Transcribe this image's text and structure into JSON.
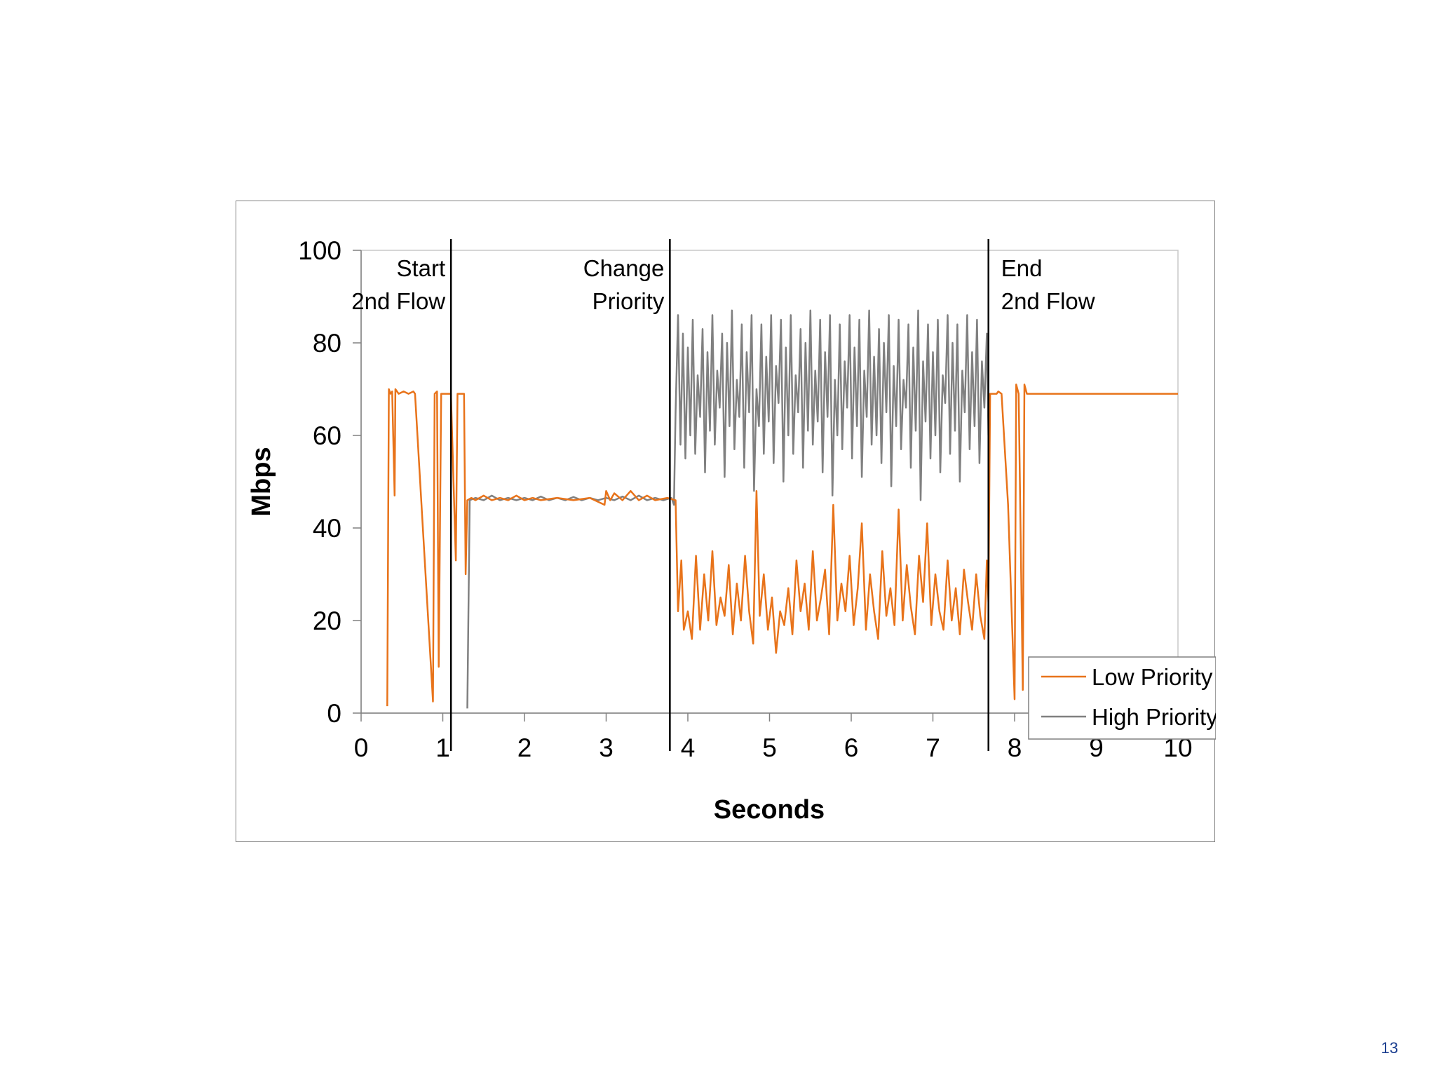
{
  "page": {
    "number": "13"
  },
  "colors": {
    "low_priority": "#E8731A",
    "high_priority": "#808080",
    "event_line": "#000000",
    "axis": "#808080"
  },
  "chart_data": {
    "type": "line",
    "xlabel": "Seconds",
    "ylabel": "Mbps",
    "xlim": [
      0,
      10
    ],
    "ylim": [
      0,
      100
    ],
    "x_ticks": [
      "0",
      "1",
      "2",
      "3",
      "4",
      "5",
      "6",
      "7",
      "8",
      "9",
      "10"
    ],
    "y_ticks": [
      "0",
      "20",
      "40",
      "60",
      "80",
      "100"
    ],
    "grid": false,
    "legend_position": "bottom-right",
    "events": [
      {
        "x": 1.1,
        "label_lines": [
          "Start",
          "2nd Flow"
        ],
        "align": "right"
      },
      {
        "x": 3.78,
        "label_lines": [
          "Change",
          "Priority"
        ],
        "align": "right"
      },
      {
        "x": 7.68,
        "label_lines": [
          "End",
          "2nd Flow"
        ],
        "align": "left"
      }
    ],
    "series": [
      {
        "name": "Low Priority",
        "color": "#E8731A",
        "points": [
          [
            0.32,
            1.5
          ],
          [
            0.34,
            70
          ],
          [
            0.36,
            69
          ],
          [
            0.38,
            69.5
          ],
          [
            0.41,
            47
          ],
          [
            0.42,
            70
          ],
          [
            0.46,
            69
          ],
          [
            0.52,
            69.5
          ],
          [
            0.58,
            69
          ],
          [
            0.64,
            69.5
          ],
          [
            0.66,
            69
          ],
          [
            0.88,
            2.5
          ],
          [
            0.9,
            69
          ],
          [
            0.93,
            69.5
          ],
          [
            0.95,
            10
          ],
          [
            0.98,
            69
          ],
          [
            1.04,
            69
          ],
          [
            1.1,
            69
          ],
          [
            1.16,
            33
          ],
          [
            1.18,
            69
          ],
          [
            1.26,
            69
          ],
          [
            1.28,
            30
          ],
          [
            1.3,
            46
          ],
          [
            1.35,
            46.5
          ],
          [
            1.4,
            46
          ],
          [
            1.5,
            47
          ],
          [
            1.6,
            46
          ],
          [
            1.7,
            46.5
          ],
          [
            1.8,
            46
          ],
          [
            1.9,
            47
          ],
          [
            2.0,
            46
          ],
          [
            2.1,
            46.5
          ],
          [
            2.2,
            46
          ],
          [
            2.4,
            46.5
          ],
          [
            2.6,
            46
          ],
          [
            2.8,
            46.5
          ],
          [
            2.98,
            45
          ],
          [
            3.0,
            48
          ],
          [
            3.05,
            46
          ],
          [
            3.1,
            47.5
          ],
          [
            3.2,
            46
          ],
          [
            3.3,
            48
          ],
          [
            3.4,
            46
          ],
          [
            3.5,
            47
          ],
          [
            3.6,
            46
          ],
          [
            3.75,
            46.5
          ],
          [
            3.85,
            46
          ],
          [
            3.88,
            22
          ],
          [
            3.92,
            33
          ],
          [
            3.95,
            18
          ],
          [
            4.0,
            22
          ],
          [
            4.05,
            16
          ],
          [
            4.1,
            34
          ],
          [
            4.15,
            18
          ],
          [
            4.2,
            30
          ],
          [
            4.25,
            20
          ],
          [
            4.3,
            35
          ],
          [
            4.35,
            19
          ],
          [
            4.4,
            25
          ],
          [
            4.45,
            21
          ],
          [
            4.5,
            32
          ],
          [
            4.55,
            17
          ],
          [
            4.6,
            28
          ],
          [
            4.65,
            20
          ],
          [
            4.7,
            34
          ],
          [
            4.75,
            22
          ],
          [
            4.8,
            15
          ],
          [
            4.84,
            48
          ],
          [
            4.88,
            21
          ],
          [
            4.93,
            30
          ],
          [
            4.98,
            18
          ],
          [
            5.03,
            25
          ],
          [
            5.08,
            13
          ],
          [
            5.13,
            22
          ],
          [
            5.18,
            19
          ],
          [
            5.23,
            27
          ],
          [
            5.28,
            17
          ],
          [
            5.33,
            33
          ],
          [
            5.38,
            22
          ],
          [
            5.43,
            28
          ],
          [
            5.48,
            18
          ],
          [
            5.53,
            35
          ],
          [
            5.58,
            20
          ],
          [
            5.63,
            25
          ],
          [
            5.68,
            31
          ],
          [
            5.73,
            17
          ],
          [
            5.78,
            45
          ],
          [
            5.83,
            20
          ],
          [
            5.88,
            28
          ],
          [
            5.93,
            22
          ],
          [
            5.98,
            34
          ],
          [
            6.03,
            19
          ],
          [
            6.08,
            27
          ],
          [
            6.13,
            41
          ],
          [
            6.18,
            18
          ],
          [
            6.23,
            30
          ],
          [
            6.28,
            22
          ],
          [
            6.33,
            16
          ],
          [
            6.38,
            35
          ],
          [
            6.43,
            21
          ],
          [
            6.48,
            27
          ],
          [
            6.53,
            19
          ],
          [
            6.58,
            44
          ],
          [
            6.63,
            20
          ],
          [
            6.68,
            32
          ],
          [
            6.73,
            23
          ],
          [
            6.78,
            17
          ],
          [
            6.83,
            34
          ],
          [
            6.88,
            24
          ],
          [
            6.93,
            41
          ],
          [
            6.98,
            19
          ],
          [
            7.03,
            30
          ],
          [
            7.08,
            22
          ],
          [
            7.13,
            18
          ],
          [
            7.18,
            33
          ],
          [
            7.23,
            20
          ],
          [
            7.28,
            27
          ],
          [
            7.33,
            17
          ],
          [
            7.38,
            31
          ],
          [
            7.43,
            24
          ],
          [
            7.48,
            18
          ],
          [
            7.53,
            30
          ],
          [
            7.58,
            21
          ],
          [
            7.63,
            16
          ],
          [
            7.66,
            33
          ],
          [
            7.68,
            24
          ],
          [
            7.7,
            69
          ],
          [
            7.74,
            69
          ],
          [
            7.78,
            69
          ],
          [
            7.8,
            69.5
          ],
          [
            7.84,
            69
          ],
          [
            7.92,
            45
          ],
          [
            8.0,
            3
          ],
          [
            8.02,
            71
          ],
          [
            8.05,
            69
          ],
          [
            8.1,
            5
          ],
          [
            8.12,
            71
          ],
          [
            8.15,
            69
          ],
          [
            8.3,
            69
          ],
          [
            8.6,
            69
          ],
          [
            9.0,
            69
          ],
          [
            9.5,
            69
          ],
          [
            10.0,
            69
          ]
        ]
      },
      {
        "name": "High Priority",
        "color": "#808080",
        "points": [
          [
            1.3,
            1
          ],
          [
            1.33,
            46
          ],
          [
            1.4,
            46.5
          ],
          [
            1.5,
            46
          ],
          [
            1.6,
            47
          ],
          [
            1.7,
            46
          ],
          [
            1.8,
            46.5
          ],
          [
            1.9,
            46
          ],
          [
            2.0,
            46.5
          ],
          [
            2.1,
            46
          ],
          [
            2.2,
            46.8
          ],
          [
            2.3,
            46
          ],
          [
            2.4,
            46.5
          ],
          [
            2.5,
            46
          ],
          [
            2.6,
            46.7
          ],
          [
            2.7,
            46
          ],
          [
            2.8,
            46.5
          ],
          [
            2.9,
            46
          ],
          [
            3.0,
            46.5
          ],
          [
            3.1,
            46
          ],
          [
            3.2,
            46.8
          ],
          [
            3.3,
            46
          ],
          [
            3.4,
            47
          ],
          [
            3.5,
            46
          ],
          [
            3.6,
            46.5
          ],
          [
            3.7,
            46
          ],
          [
            3.8,
            46.5
          ],
          [
            3.83,
            45
          ],
          [
            3.85,
            65
          ],
          [
            3.88,
            86
          ],
          [
            3.91,
            58
          ],
          [
            3.94,
            82
          ],
          [
            3.97,
            55
          ],
          [
            4.0,
            79
          ],
          [
            4.03,
            60
          ],
          [
            4.06,
            85
          ],
          [
            4.09,
            56
          ],
          [
            4.12,
            73
          ],
          [
            4.15,
            64
          ],
          [
            4.18,
            83
          ],
          [
            4.21,
            52
          ],
          [
            4.24,
            78
          ],
          [
            4.27,
            61
          ],
          [
            4.3,
            86
          ],
          [
            4.33,
            58
          ],
          [
            4.36,
            74
          ],
          [
            4.39,
            66
          ],
          [
            4.42,
            82
          ],
          [
            4.45,
            51
          ],
          [
            4.48,
            80
          ],
          [
            4.51,
            62
          ],
          [
            4.54,
            87
          ],
          [
            4.57,
            57
          ],
          [
            4.6,
            72
          ],
          [
            4.63,
            64
          ],
          [
            4.66,
            84
          ],
          [
            4.69,
            53
          ],
          [
            4.72,
            78
          ],
          [
            4.75,
            65
          ],
          [
            4.78,
            86
          ],
          [
            4.81,
            48
          ],
          [
            4.84,
            70
          ],
          [
            4.87,
            62
          ],
          [
            4.9,
            84
          ],
          [
            4.93,
            56
          ],
          [
            4.96,
            77
          ],
          [
            4.99,
            63
          ],
          [
            5.02,
            86
          ],
          [
            5.05,
            54
          ],
          [
            5.08,
            75
          ],
          [
            5.11,
            67
          ],
          [
            5.14,
            85
          ],
          [
            5.17,
            50
          ],
          [
            5.2,
            79
          ],
          [
            5.23,
            60
          ],
          [
            5.26,
            86
          ],
          [
            5.29,
            56
          ],
          [
            5.32,
            73
          ],
          [
            5.35,
            65
          ],
          [
            5.38,
            83
          ],
          [
            5.41,
            53
          ],
          [
            5.44,
            80
          ],
          [
            5.47,
            61
          ],
          [
            5.5,
            87
          ],
          [
            5.53,
            58
          ],
          [
            5.56,
            74
          ],
          [
            5.59,
            63
          ],
          [
            5.62,
            85
          ],
          [
            5.65,
            52
          ],
          [
            5.68,
            78
          ],
          [
            5.71,
            64
          ],
          [
            5.74,
            86
          ],
          [
            5.77,
            47
          ],
          [
            5.8,
            72
          ],
          [
            5.83,
            60
          ],
          [
            5.86,
            84
          ],
          [
            5.89,
            57
          ],
          [
            5.92,
            76
          ],
          [
            5.95,
            66
          ],
          [
            5.98,
            86
          ],
          [
            6.01,
            55
          ],
          [
            6.04,
            79
          ],
          [
            6.07,
            62
          ],
          [
            6.1,
            85
          ],
          [
            6.13,
            51
          ],
          [
            6.16,
            74
          ],
          [
            6.19,
            64
          ],
          [
            6.22,
            87
          ],
          [
            6.25,
            58
          ],
          [
            6.28,
            77
          ],
          [
            6.31,
            60
          ],
          [
            6.34,
            83
          ],
          [
            6.37,
            54
          ],
          [
            6.4,
            80
          ],
          [
            6.43,
            65
          ],
          [
            6.46,
            86
          ],
          [
            6.49,
            49
          ],
          [
            6.52,
            75
          ],
          [
            6.55,
            62
          ],
          [
            6.58,
            85
          ],
          [
            6.61,
            57
          ],
          [
            6.64,
            72
          ],
          [
            6.67,
            66
          ],
          [
            6.7,
            84
          ],
          [
            6.73,
            53
          ],
          [
            6.76,
            79
          ],
          [
            6.79,
            61
          ],
          [
            6.82,
            87
          ],
          [
            6.85,
            46
          ],
          [
            6.88,
            76
          ],
          [
            6.91,
            63
          ],
          [
            6.94,
            84
          ],
          [
            6.97,
            55
          ],
          [
            7.0,
            78
          ],
          [
            7.03,
            60
          ],
          [
            7.06,
            85
          ],
          [
            7.09,
            52
          ],
          [
            7.12,
            73
          ],
          [
            7.15,
            67
          ],
          [
            7.18,
            86
          ],
          [
            7.21,
            56
          ],
          [
            7.24,
            80
          ],
          [
            7.27,
            61
          ],
          [
            7.3,
            84
          ],
          [
            7.33,
            50
          ],
          [
            7.36,
            74
          ],
          [
            7.39,
            65
          ],
          [
            7.42,
            86
          ],
          [
            7.45,
            57
          ],
          [
            7.48,
            78
          ],
          [
            7.51,
            62
          ],
          [
            7.54,
            85
          ],
          [
            7.57,
            54
          ],
          [
            7.6,
            76
          ],
          [
            7.63,
            66
          ],
          [
            7.66,
            82
          ],
          [
            7.68,
            60
          ]
        ]
      }
    ]
  }
}
